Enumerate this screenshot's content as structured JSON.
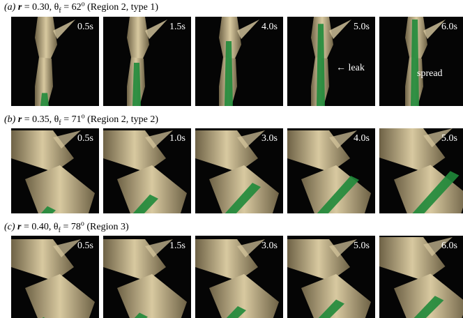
{
  "rows": [
    {
      "panel": "(a)",
      "r_symbol": "r",
      "r_text": " = 0.30,  θ",
      "theta_sub": "f",
      "theta_text": " = 62",
      "theta_sup": "o",
      "region_text": "  (Region 2, type 1)",
      "frames": [
        {
          "time": "0.5s",
          "green": 0.15
        },
        {
          "time": "1.5s",
          "green": 0.5
        },
        {
          "time": "4.0s",
          "green": 0.75
        },
        {
          "time": "5.0s",
          "green": 0.95,
          "annotation": "← leak"
        },
        {
          "time": "6.0s",
          "green": 1.0,
          "annotation": "spread"
        }
      ]
    },
    {
      "panel": "(b)",
      "r_symbol": "r",
      "r_text": " = 0.35,  θ",
      "theta_sub": "f",
      "theta_text": " = 71",
      "theta_sup": "o",
      "region_text": "  (Region 2, type 2)",
      "frames": [
        {
          "time": "0.5s",
          "green": 0.2
        },
        {
          "time": "1.0s",
          "green": 0.45
        },
        {
          "time": "3.0s",
          "green": 0.7
        },
        {
          "time": "4.0s",
          "green": 0.85
        },
        {
          "time": "5.0s",
          "green": 0.95
        }
      ]
    },
    {
      "panel": "(c)",
      "r_symbol": "r",
      "r_text": " = 0.40,  θ",
      "theta_sub": "f",
      "theta_text": " = 78",
      "theta_sup": "o",
      "region_text": "  (Region 3)",
      "frames": [
        {
          "time": "0.5s",
          "green": 0.1
        },
        {
          "time": "1.5s",
          "green": 0.2
        },
        {
          "time": "3.0s",
          "green": 0.35
        },
        {
          "time": "5.0s",
          "green": 0.5
        },
        {
          "time": "6.0s",
          "green": 0.6
        }
      ]
    }
  ],
  "colors": {
    "background": "#050505",
    "insect_light": "#d8c9a0",
    "insect_dark": "#6e6246",
    "dye_green": "#1f8a3a",
    "label_text": "#ffffff"
  }
}
